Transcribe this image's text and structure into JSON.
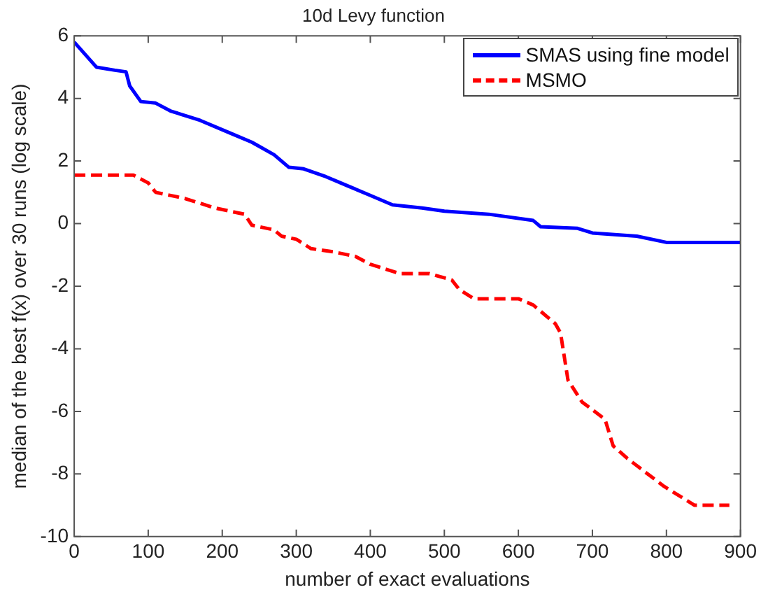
{
  "chart_data": {
    "type": "line",
    "title": "10d Levy function",
    "xlabel": "number of exact evaluations",
    "ylabel": "median of the best f(x) over 30 runs (log scale)",
    "xlim": [
      0,
      900
    ],
    "xticks": [
      0,
      100,
      200,
      300,
      400,
      500,
      600,
      700,
      800,
      900
    ],
    "ylim": [
      -10,
      6
    ],
    "yticks": [
      -10,
      -8,
      -6,
      -4,
      -2,
      0,
      2,
      4,
      6
    ],
    "grid": false,
    "legend": "top right",
    "marker": "none",
    "series": [
      {
        "name": "SMAS using fine model",
        "color": "#0000ff",
        "line_style": "solid",
        "x": [
          0,
          30,
          55,
          70,
          75,
          90,
          110,
          130,
          170,
          210,
          240,
          270,
          290,
          310,
          340,
          370,
          400,
          430,
          470,
          500,
          560,
          620,
          630,
          680,
          700,
          760,
          800,
          900
        ],
        "values": [
          5.8,
          5.0,
          4.9,
          4.85,
          4.4,
          3.9,
          3.85,
          3.6,
          3.3,
          2.9,
          2.6,
          2.2,
          1.8,
          1.75,
          1.5,
          1.2,
          0.9,
          0.6,
          0.5,
          0.4,
          0.3,
          0.1,
          -0.1,
          -0.15,
          -0.3,
          -0.4,
          -0.6,
          -0.6
        ]
      },
      {
        "name": "MSMO",
        "color": "#ff0000",
        "line_style": "dashed",
        "x": [
          0,
          80,
          100,
          110,
          150,
          190,
          230,
          240,
          270,
          280,
          300,
          320,
          350,
          380,
          400,
          440,
          480,
          510,
          520,
          540,
          600,
          620,
          650,
          657,
          667,
          686,
          717,
          728,
          747,
          797,
          838,
          885
        ],
        "values": [
          1.55,
          1.55,
          1.3,
          1.0,
          0.8,
          0.5,
          0.3,
          -0.05,
          -0.2,
          -0.4,
          -0.5,
          -0.8,
          -0.9,
          -1.05,
          -1.3,
          -1.6,
          -1.6,
          -1.8,
          -2.1,
          -2.4,
          -2.4,
          -2.6,
          -3.2,
          -3.5,
          -5.0,
          -5.7,
          -6.25,
          -7.1,
          -7.5,
          -8.4,
          -9.0,
          -9.0
        ]
      }
    ]
  }
}
